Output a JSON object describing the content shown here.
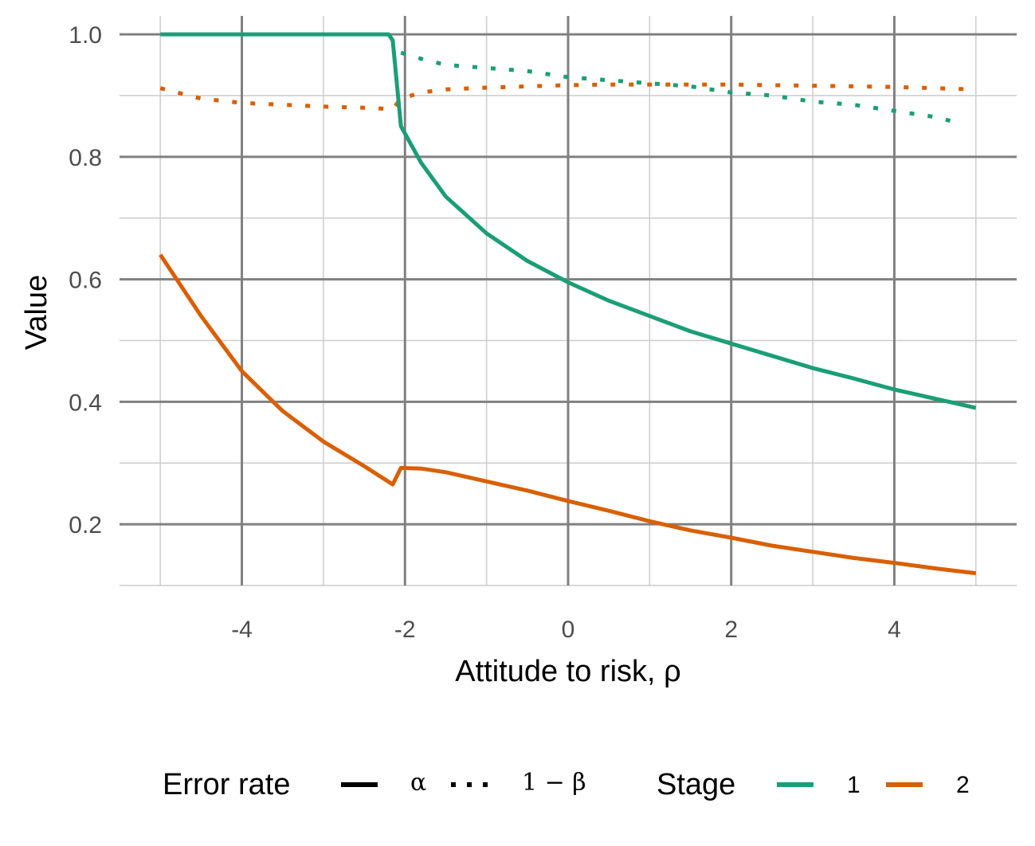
{
  "chart_data": {
    "type": "line",
    "xlabel": "Attitude to risk, ρ",
    "ylabel": "Value",
    "xlim": [
      -5.5,
      5.5
    ],
    "ylim": [
      0.1,
      1.03
    ],
    "x_ticks": [
      -4,
      -2,
      0,
      2,
      4
    ],
    "x_tick_labels": [
      "-4",
      "-2",
      "0",
      "2",
      "4"
    ],
    "y_ticks": [
      0.2,
      0.4,
      0.6,
      0.8,
      1.0
    ],
    "y_tick_labels": [
      "0.2",
      "0.4",
      "0.6",
      "0.8",
      "1.0"
    ],
    "grid": true,
    "legend": {
      "position": "bottom",
      "error_rate": {
        "title": "Error rate",
        "items": [
          {
            "label": "α",
            "linetype": "solid"
          },
          {
            "label": "1 − β",
            "linetype": "dotted"
          }
        ]
      },
      "stage": {
        "title": "Stage",
        "items": [
          {
            "label": "1",
            "color": "#1b9e77"
          },
          {
            "label": "2",
            "color": "#d95f02"
          }
        ]
      }
    },
    "series": [
      {
        "stage": "1",
        "error_rate": "α",
        "color": "#1b9e77",
        "linetype": "solid",
        "x": [
          -5,
          -4,
          -3,
          -2.2,
          -2.15,
          -2.05,
          -1.8,
          -1.5,
          -1.0,
          -0.5,
          0,
          0.5,
          1.0,
          1.5,
          2.0,
          2.5,
          3.0,
          3.5,
          4.0,
          4.5,
          5.0
        ],
        "y": [
          1.0,
          1.0,
          1.0,
          1.0,
          0.99,
          0.85,
          0.79,
          0.735,
          0.675,
          0.63,
          0.595,
          0.565,
          0.54,
          0.515,
          0.495,
          0.475,
          0.455,
          0.438,
          0.42,
          0.405,
          0.39
        ]
      },
      {
        "stage": "1",
        "error_rate": "1 − β",
        "color": "#1b9e77",
        "linetype": "dotted",
        "x": [
          -2.05,
          -1.8,
          -1.5,
          -1.0,
          -0.5,
          0,
          0.5,
          1.0,
          1.5,
          2.0,
          2.5,
          3.0,
          3.5,
          4.0,
          4.5,
          4.8
        ],
        "y": [
          0.97,
          0.96,
          0.95,
          0.945,
          0.94,
          0.93,
          0.925,
          0.92,
          0.915,
          0.905,
          0.9,
          0.89,
          0.885,
          0.875,
          0.865,
          0.855
        ]
      },
      {
        "stage": "2",
        "error_rate": "α",
        "color": "#d95f02",
        "linetype": "solid",
        "x": [
          -5,
          -4.5,
          -4.0,
          -3.5,
          -3.0,
          -2.5,
          -2.15,
          -2.05,
          -1.8,
          -1.5,
          -1.0,
          -0.5,
          0,
          0.5,
          1.0,
          1.5,
          2.0,
          2.5,
          3.0,
          3.5,
          4.0,
          4.5,
          5.0
        ],
        "y": [
          0.64,
          0.54,
          0.45,
          0.385,
          0.335,
          0.295,
          0.265,
          0.292,
          0.291,
          0.285,
          0.27,
          0.255,
          0.238,
          0.222,
          0.205,
          0.19,
          0.178,
          0.165,
          0.155,
          0.145,
          0.137,
          0.128,
          0.12
        ]
      },
      {
        "stage": "2",
        "error_rate": "1 − β",
        "color": "#d95f02",
        "linetype": "dotted",
        "x": [
          -5,
          -4.5,
          -4.0,
          -3.5,
          -3.0,
          -2.5,
          -2.15,
          -2.05,
          -1.8,
          -1.5,
          -1.0,
          -0.5,
          0,
          0.5,
          1.0,
          1.5,
          2.0,
          2.5,
          3.0,
          3.5,
          4.0,
          4.5,
          5.0
        ],
        "y": [
          0.912,
          0.895,
          0.888,
          0.885,
          0.882,
          0.88,
          0.878,
          0.895,
          0.905,
          0.91,
          0.913,
          0.915,
          0.917,
          0.918,
          0.918,
          0.918,
          0.918,
          0.917,
          0.916,
          0.915,
          0.914,
          0.912,
          0.91
        ]
      }
    ]
  }
}
